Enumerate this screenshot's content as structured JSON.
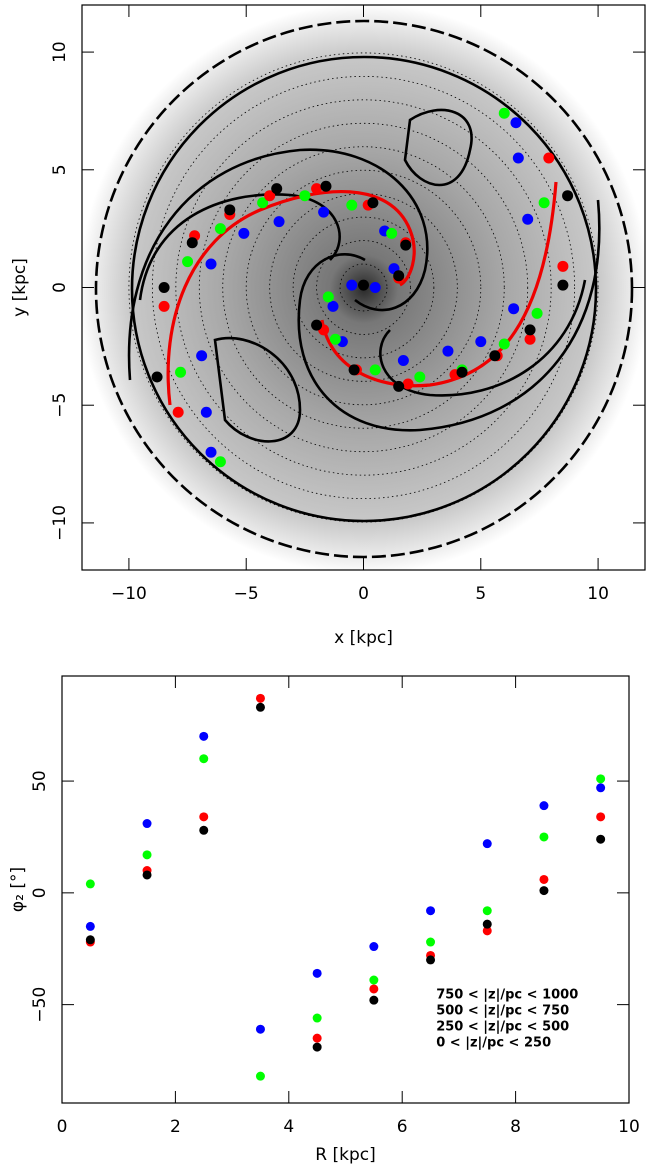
{
  "chart_data": [
    {
      "type": "scatter",
      "xlabel": "x [kpc]",
      "ylabel": "y [kpc]",
      "xlim": [
        -12,
        12
      ],
      "ylim": [
        -12,
        12
      ],
      "xticks": [
        {
          "value": -10,
          "label": "−10"
        },
        {
          "value": -5,
          "label": "−5"
        },
        0,
        5,
        10
      ],
      "yticks": [
        {
          "value": -10,
          "label": "−10"
        },
        {
          "value": -5,
          "label": "−5"
        },
        0,
        5,
        10
      ],
      "series": [
        {
          "color": "#0000ff",
          "x": [
            6.5,
            6.6,
            7.0,
            6.4,
            5.0,
            3.6,
            1.7,
            -0.9,
            -1.3,
            -0.5,
            0.5,
            1.3,
            0.9,
            -1.7,
            -3.6,
            -5.1,
            -6.5,
            -6.9,
            -6.7,
            -6.5
          ],
          "values": [
            7.0,
            5.5,
            2.9,
            -0.9,
            -2.3,
            -2.7,
            -3.1,
            -2.3,
            -0.8,
            0.1,
            0.0,
            0.8,
            2.4,
            3.2,
            2.8,
            2.3,
            1.0,
            -2.9,
            -5.3,
            -7.0
          ]
        },
        {
          "color": "#00ff00",
          "x": [
            6.0,
            7.7,
            7.4,
            6.0,
            4.2,
            2.4,
            0.5,
            -1.2,
            -1.5,
            1.5,
            1.2,
            -0.5,
            -2.5,
            -4.3,
            -6.1,
            -7.5,
            -7.8,
            -6.1
          ],
          "values": [
            7.4,
            3.6,
            -1.1,
            -2.4,
            -3.5,
            -3.8,
            -3.5,
            -2.2,
            -0.4,
            0.4,
            2.3,
            3.5,
            3.9,
            3.6,
            2.5,
            1.1,
            -3.6,
            -7.4
          ]
        },
        {
          "color": "#ff0000",
          "x": [
            7.9,
            8.5,
            7.1,
            5.7,
            3.9,
            1.9,
            -0.3,
            -1.7,
            1.5,
            1.8,
            0.2,
            -2.0,
            -4.0,
            -5.7,
            -7.2,
            -8.5,
            -7.9
          ],
          "values": [
            5.5,
            0.9,
            -2.2,
            -2.9,
            -3.7,
            -4.1,
            -3.5,
            -1.8,
            0.4,
            1.9,
            3.5,
            4.2,
            3.9,
            3.1,
            2.2,
            -0.8,
            -5.3
          ]
        },
        {
          "color": "#000000",
          "x": [
            8.7,
            8.5,
            7.1,
            5.6,
            4.2,
            1.5,
            -0.4,
            -2.0,
            0.0,
            1.5,
            1.8,
            0.4,
            -1.6,
            -3.7,
            -5.7,
            -7.3,
            -8.5,
            -8.8
          ],
          "values": [
            3.9,
            0.1,
            -1.8,
            -2.9,
            -3.6,
            -4.2,
            -3.5,
            -1.6,
            0.1,
            0.5,
            1.8,
            3.6,
            4.3,
            4.2,
            3.3,
            1.9,
            0.0,
            -3.8
          ]
        }
      ]
    },
    {
      "type": "scatter",
      "xlabel": "R [kpc]",
      "ylabel": "φ₂ [°]",
      "xlim": [
        0,
        10
      ],
      "ylim": [
        -94,
        97
      ],
      "xticks": [
        0,
        2,
        4,
        6,
        8,
        10
      ],
      "yticks": [
        {
          "value": -50,
          "label": "−50"
        },
        0,
        50
      ],
      "legend": "lower right",
      "series": [
        {
          "name": "750 < |z|/pc < 1000",
          "color": "#0000ff",
          "x": [
            0.5,
            1.5,
            2.5,
            3.5,
            4.5,
            5.5,
            6.5,
            7.5,
            8.5,
            9.5
          ],
          "values": [
            -15,
            31,
            70,
            -61,
            -36,
            -24,
            -8,
            22,
            39,
            47
          ]
        },
        {
          "name": "500 < |z|/pc < 750",
          "color": "#00ff00",
          "x": [
            0.5,
            1.5,
            2.5,
            3.5,
            4.5,
            5.5,
            6.5,
            7.5,
            8.5,
            9.5
          ],
          "values": [
            4,
            17,
            60,
            -82,
            -56,
            -39,
            -22,
            -8,
            25,
            51
          ]
        },
        {
          "name": "250 < |z|/pc < 500",
          "color": "#ff0000",
          "x": [
            0.5,
            1.5,
            2.5,
            3.5,
            4.5,
            5.5,
            6.5,
            7.5,
            8.5,
            9.5
          ],
          "values": [
            -22,
            10,
            34,
            87,
            -65,
            -43,
            -28,
            -17,
            6,
            34
          ]
        },
        {
          "name": "0 < |z|/pc < 250",
          "color": "#000000",
          "x": [
            0.5,
            1.5,
            2.5,
            3.5,
            4.5,
            5.5,
            6.5,
            7.5,
            8.5,
            9.5
          ],
          "values": [
            -21,
            8,
            28,
            83,
            -69,
            -48,
            -30,
            -14,
            1,
            24
          ]
        }
      ]
    }
  ]
}
